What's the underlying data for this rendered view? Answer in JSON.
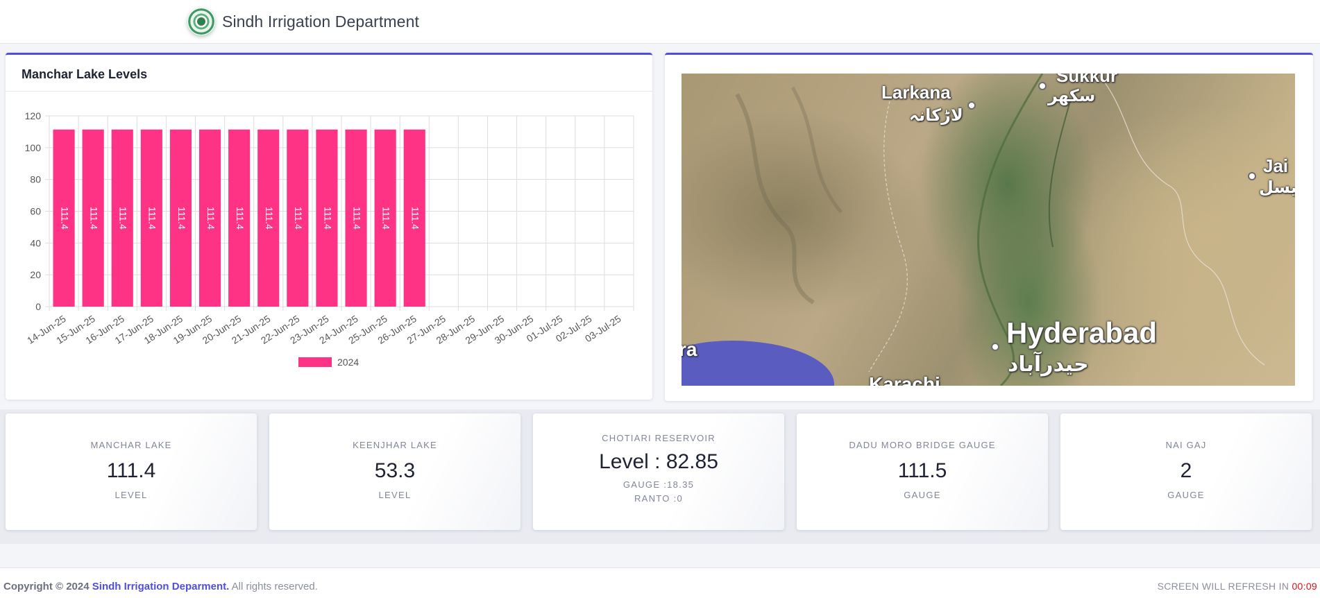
{
  "header": {
    "title": "Sindh Irrigation Department",
    "logo_icon": "government-seal-icon"
  },
  "chart_panel": {
    "title": "Manchar Lake Levels"
  },
  "chart_data": {
    "type": "bar",
    "title": "Manchar Lake Levels",
    "categories": [
      "14-Jun-25",
      "15-Jun-25",
      "16-Jun-25",
      "17-Jun-25",
      "18-Jun-25",
      "19-Jun-25",
      "20-Jun-25",
      "21-Jun-25",
      "22-Jun-25",
      "23-Jun-25",
      "24-Jun-25",
      "25-Jun-25",
      "26-Jun-25",
      "27-Jun-25",
      "28-Jun-25",
      "29-Jun-25",
      "30-Jun-25",
      "01-Jul-25",
      "02-Jul-25",
      "03-Jul-25"
    ],
    "series": [
      {
        "name": "2024",
        "color": "#ff3385",
        "values": [
          111.4,
          111.4,
          111.4,
          111.4,
          111.4,
          111.4,
          111.4,
          111.4,
          111.4,
          111.4,
          111.4,
          111.4,
          111.4,
          null,
          null,
          null,
          null,
          null,
          null,
          null
        ],
        "labels": [
          "111.4",
          "111.4",
          "111.4",
          "111.4",
          "111.4",
          "111.4",
          "111.4",
          "111.4",
          "111.4",
          "111.4",
          "111.4",
          "111.4",
          "111.4",
          "",
          "",
          "",
          "",
          "",
          "",
          ""
        ]
      }
    ],
    "ylim": [
      0,
      120
    ],
    "yticks": [
      0,
      20,
      40,
      60,
      80,
      100,
      120
    ],
    "grid": true,
    "legend": "bottom-center",
    "xlabel": "",
    "ylabel": ""
  },
  "map": {
    "cities": [
      {
        "name": "Larkana",
        "local": "لاڑکانہ"
      },
      {
        "name": "Sukkur",
        "local": "سکھر"
      },
      {
        "name": "Jai",
        "local": "جیسل"
      },
      {
        "name": "Hyderabad",
        "local": "حیدرآباد"
      },
      {
        "name": "ra",
        "local": ""
      },
      {
        "name": "Karachi",
        "local": ""
      }
    ],
    "colors": {
      "land": "#b9a683",
      "vegetation": "#5d7e4e",
      "sea": "#5a5cc0"
    }
  },
  "tiles": [
    {
      "label": "MANCHAR LAKE",
      "value": "111.4",
      "sub": "LEVEL"
    },
    {
      "label": "KEENJHAR LAKE",
      "value": "53.3",
      "sub": "LEVEL"
    },
    {
      "label": "CHOTIARI RESERVOIR",
      "value": "Level : 82.85",
      "sub": "GAUGE :18.35",
      "sub2": "RANTO :0"
    },
    {
      "label": "DADU MORO BRIDGE GAUGE",
      "value": "111.5",
      "sub": "GAUGE"
    },
    {
      "label": "NAI GAJ",
      "value": "2",
      "sub": "GAUGE"
    }
  ],
  "footer": {
    "copyright_prefix": "Copyright © 2024",
    "org": "Sindh Irrigation Deparment.",
    "rights": "All rights reserved.",
    "refresh_text": "SCREEN WILL REFRESH IN",
    "timer": "00:09"
  }
}
